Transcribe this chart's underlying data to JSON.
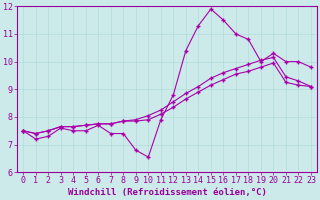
{
  "xlabel": "Windchill (Refroidissement éolien,°C)",
  "background_color": "#cceaea",
  "line_color": "#aa00aa",
  "xlim": [
    -0.5,
    23.5
  ],
  "ylim": [
    6,
    12
  ],
  "yticks": [
    6,
    7,
    8,
    9,
    10,
    11,
    12
  ],
  "xticks": [
    0,
    1,
    2,
    3,
    4,
    5,
    6,
    7,
    8,
    9,
    10,
    11,
    12,
    13,
    14,
    15,
    16,
    17,
    18,
    19,
    20,
    21,
    22,
    23
  ],
  "series": [
    [
      7.5,
      7.2,
      7.3,
      7.6,
      7.5,
      7.5,
      7.7,
      7.4,
      7.4,
      6.8,
      6.55,
      7.9,
      8.8,
      10.4,
      11.3,
      11.9,
      11.5,
      11.0,
      10.8,
      10.0,
      10.3,
      10.0,
      10.0,
      9.8
    ],
    [
      7.5,
      7.4,
      7.5,
      7.65,
      7.65,
      7.7,
      7.75,
      7.75,
      7.85,
      7.85,
      7.9,
      8.1,
      8.35,
      8.65,
      8.9,
      9.15,
      9.35,
      9.55,
      9.65,
      9.8,
      9.95,
      9.25,
      9.15,
      9.1
    ],
    [
      7.5,
      7.4,
      7.5,
      7.65,
      7.65,
      7.7,
      7.75,
      7.75,
      7.85,
      7.9,
      8.05,
      8.25,
      8.55,
      8.85,
      9.1,
      9.4,
      9.6,
      9.75,
      9.9,
      10.05,
      10.15,
      9.45,
      9.3,
      9.1
    ]
  ],
  "grid_color": "#aad8d8",
  "font_color": "#990099",
  "marker": "+",
  "markersize": 3.5,
  "linewidth": 0.8,
  "xlabel_fontsize": 6.5,
  "tick_fontsize": 6,
  "fig_bg": "#cceaea"
}
